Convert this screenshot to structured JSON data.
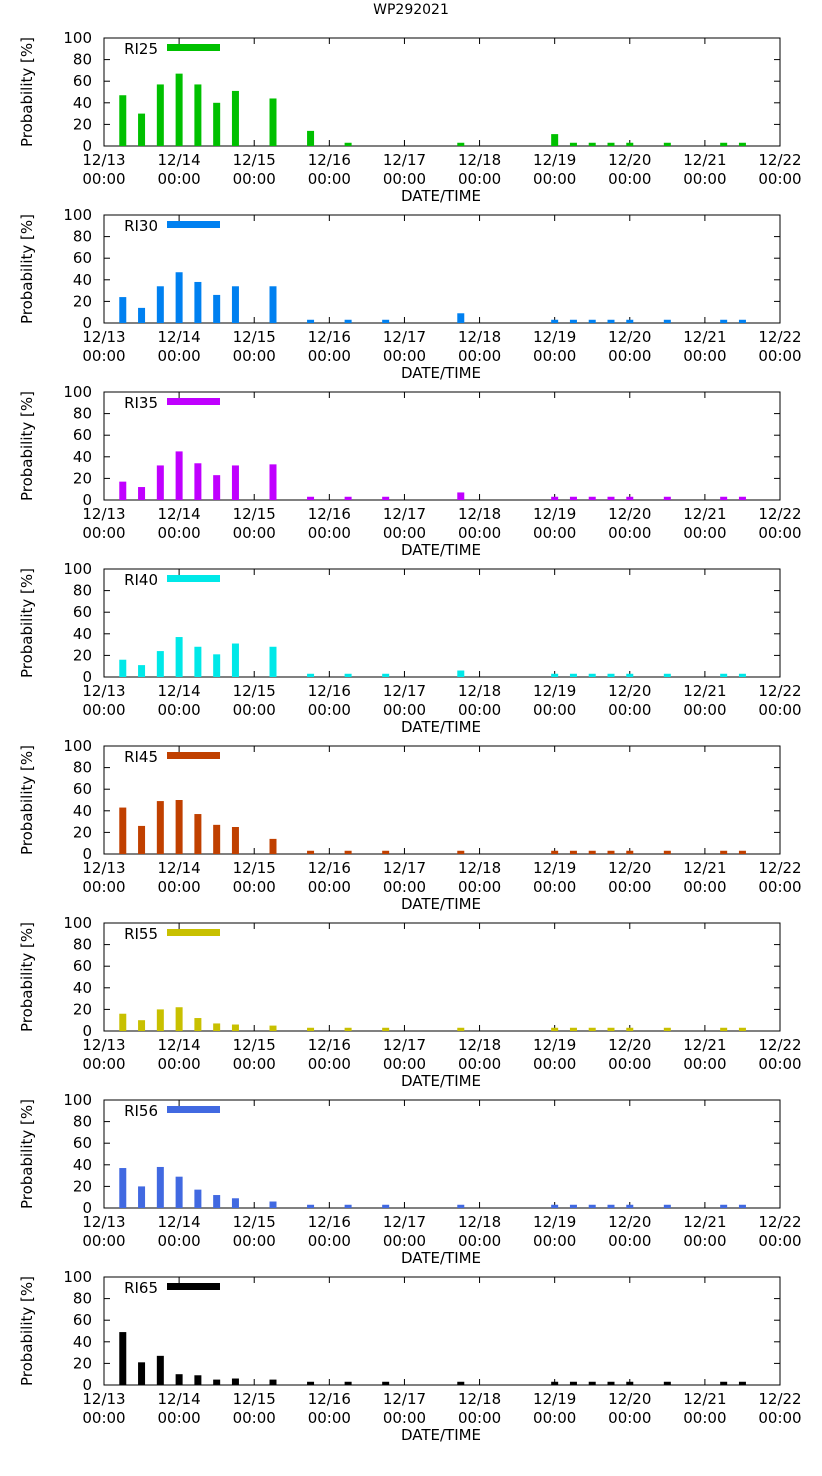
{
  "title": "WP292021",
  "chart_data": [
    {
      "type": "bar",
      "series_name": "RI25",
      "color": "#00c000",
      "ylabel": "Probability [%]",
      "xlabel": "DATE/TIME",
      "ylim": [
        0,
        100
      ],
      "yticks": [
        "0",
        "20",
        "40",
        "60",
        "80",
        "100"
      ],
      "x_tick_dates": [
        "12/13",
        "12/14",
        "12/15",
        "12/16",
        "12/17",
        "12/18",
        "12/19",
        "12/20",
        "12/21",
        "12/22"
      ],
      "x_tick_times": [
        "00:00",
        "00:00",
        "00:00",
        "00:00",
        "00:00",
        "00:00",
        "00:00",
        "00:00",
        "00:00",
        "00:00"
      ],
      "x_hours": [
        6,
        12,
        18,
        24,
        30,
        36,
        42,
        54,
        66,
        78,
        114,
        144,
        150,
        156,
        162,
        168,
        180,
        198,
        204
      ],
      "values": [
        47,
        30,
        57,
        67,
        57,
        40,
        51,
        44,
        14,
        3,
        3,
        11,
        3,
        3,
        3,
        3,
        3,
        3,
        3
      ]
    },
    {
      "type": "bar",
      "series_name": "RI30",
      "color": "#0080f0",
      "ylabel": "Probability [%]",
      "xlabel": "DATE/TIME",
      "ylim": [
        0,
        100
      ],
      "yticks": [
        "0",
        "20",
        "40",
        "60",
        "80",
        "100"
      ],
      "x_tick_dates": [
        "12/13",
        "12/14",
        "12/15",
        "12/16",
        "12/17",
        "12/18",
        "12/19",
        "12/20",
        "12/21",
        "12/22"
      ],
      "x_tick_times": [
        "00:00",
        "00:00",
        "00:00",
        "00:00",
        "00:00",
        "00:00",
        "00:00",
        "00:00",
        "00:00",
        "00:00"
      ],
      "x_hours": [
        6,
        12,
        18,
        24,
        30,
        36,
        42,
        54,
        66,
        78,
        90,
        114,
        144,
        150,
        156,
        162,
        168,
        180,
        198,
        204
      ],
      "values": [
        24,
        14,
        34,
        47,
        38,
        26,
        34,
        34,
        3,
        3,
        3,
        9,
        3,
        3,
        3,
        3,
        3,
        3,
        3,
        3
      ]
    },
    {
      "type": "bar",
      "series_name": "RI35",
      "color": "#c000ff",
      "ylabel": "Probability [%]",
      "xlabel": "DATE/TIME",
      "ylim": [
        0,
        100
      ],
      "yticks": [
        "0",
        "20",
        "40",
        "60",
        "80",
        "100"
      ],
      "x_tick_dates": [
        "12/13",
        "12/14",
        "12/15",
        "12/16",
        "12/17",
        "12/18",
        "12/19",
        "12/20",
        "12/21",
        "12/22"
      ],
      "x_tick_times": [
        "00:00",
        "00:00",
        "00:00",
        "00:00",
        "00:00",
        "00:00",
        "00:00",
        "00:00",
        "00:00",
        "00:00"
      ],
      "x_hours": [
        6,
        12,
        18,
        24,
        30,
        36,
        42,
        54,
        66,
        78,
        90,
        114,
        144,
        150,
        156,
        162,
        168,
        180,
        198,
        204
      ],
      "values": [
        17,
        12,
        32,
        45,
        34,
        23,
        32,
        33,
        3,
        3,
        3,
        7,
        3,
        3,
        3,
        3,
        3,
        3,
        3,
        3
      ]
    },
    {
      "type": "bar",
      "series_name": "RI40",
      "color": "#00e8e8",
      "ylabel": "Probability [%]",
      "xlabel": "DATE/TIME",
      "ylim": [
        0,
        100
      ],
      "yticks": [
        "0",
        "20",
        "40",
        "60",
        "80",
        "100"
      ],
      "x_tick_dates": [
        "12/13",
        "12/14",
        "12/15",
        "12/16",
        "12/17",
        "12/18",
        "12/19",
        "12/20",
        "12/21",
        "12/22"
      ],
      "x_tick_times": [
        "00:00",
        "00:00",
        "00:00",
        "00:00",
        "00:00",
        "00:00",
        "00:00",
        "00:00",
        "00:00",
        "00:00"
      ],
      "x_hours": [
        6,
        12,
        18,
        24,
        30,
        36,
        42,
        54,
        66,
        78,
        90,
        114,
        144,
        150,
        156,
        162,
        168,
        180,
        198,
        204
      ],
      "values": [
        16,
        11,
        24,
        37,
        28,
        21,
        31,
        28,
        3,
        3,
        3,
        6,
        3,
        3,
        3,
        3,
        3,
        3,
        3,
        3
      ]
    },
    {
      "type": "bar",
      "series_name": "RI45",
      "color": "#c04000",
      "ylabel": "Probability [%]",
      "xlabel": "DATE/TIME",
      "ylim": [
        0,
        100
      ],
      "yticks": [
        "0",
        "20",
        "40",
        "60",
        "80",
        "100"
      ],
      "x_tick_dates": [
        "12/13",
        "12/14",
        "12/15",
        "12/16",
        "12/17",
        "12/18",
        "12/19",
        "12/20",
        "12/21",
        "12/22"
      ],
      "x_tick_times": [
        "00:00",
        "00:00",
        "00:00",
        "00:00",
        "00:00",
        "00:00",
        "00:00",
        "00:00",
        "00:00",
        "00:00"
      ],
      "x_hours": [
        6,
        12,
        18,
        24,
        30,
        36,
        42,
        54,
        66,
        78,
        90,
        114,
        144,
        150,
        156,
        162,
        168,
        180,
        198,
        204
      ],
      "values": [
        43,
        26,
        49,
        50,
        37,
        27,
        25,
        14,
        3,
        3,
        3,
        3,
        3,
        3,
        3,
        3,
        3,
        3,
        3,
        3
      ]
    },
    {
      "type": "bar",
      "series_name": "RI55",
      "color": "#c8c000",
      "ylabel": "Probability [%]",
      "xlabel": "DATE/TIME",
      "ylim": [
        0,
        100
      ],
      "yticks": [
        "0",
        "20",
        "40",
        "60",
        "80",
        "100"
      ],
      "x_tick_dates": [
        "12/13",
        "12/14",
        "12/15",
        "12/16",
        "12/17",
        "12/18",
        "12/19",
        "12/20",
        "12/21",
        "12/22"
      ],
      "x_tick_times": [
        "00:00",
        "00:00",
        "00:00",
        "00:00",
        "00:00",
        "00:00",
        "00:00",
        "00:00",
        "00:00",
        "00:00"
      ],
      "x_hours": [
        6,
        12,
        18,
        24,
        30,
        36,
        42,
        54,
        66,
        78,
        90,
        114,
        144,
        150,
        156,
        162,
        168,
        180,
        198,
        204
      ],
      "values": [
        16,
        10,
        20,
        22,
        12,
        7,
        6,
        5,
        3,
        3,
        3,
        3,
        3,
        3,
        3,
        3,
        3,
        3,
        3,
        3
      ]
    },
    {
      "type": "bar",
      "series_name": "RI56",
      "color": "#4169e1",
      "ylabel": "Probability [%]",
      "xlabel": "DATE/TIME",
      "ylim": [
        0,
        100
      ],
      "yticks": [
        "0",
        "20",
        "40",
        "60",
        "80",
        "100"
      ],
      "x_tick_dates": [
        "12/13",
        "12/14",
        "12/15",
        "12/16",
        "12/17",
        "12/18",
        "12/19",
        "12/20",
        "12/21",
        "12/22"
      ],
      "x_tick_times": [
        "00:00",
        "00:00",
        "00:00",
        "00:00",
        "00:00",
        "00:00",
        "00:00",
        "00:00",
        "00:00",
        "00:00"
      ],
      "x_hours": [
        6,
        12,
        18,
        24,
        30,
        36,
        42,
        54,
        66,
        78,
        90,
        114,
        144,
        150,
        156,
        162,
        168,
        180,
        198,
        204
      ],
      "values": [
        37,
        20,
        38,
        29,
        17,
        12,
        9,
        6,
        3,
        3,
        3,
        3,
        3,
        3,
        3,
        3,
        3,
        3,
        3,
        3
      ]
    },
    {
      "type": "bar",
      "series_name": "RI65",
      "color": "#000000",
      "ylabel": "Probability [%]",
      "xlabel": "DATE/TIME",
      "ylim": [
        0,
        100
      ],
      "yticks": [
        "0",
        "20",
        "40",
        "60",
        "80",
        "100"
      ],
      "x_tick_dates": [
        "12/13",
        "12/14",
        "12/15",
        "12/16",
        "12/17",
        "12/18",
        "12/19",
        "12/20",
        "12/21",
        "12/22"
      ],
      "x_tick_times": [
        "00:00",
        "00:00",
        "00:00",
        "00:00",
        "00:00",
        "00:00",
        "00:00",
        "00:00",
        "00:00",
        "00:00"
      ],
      "x_hours": [
        6,
        12,
        18,
        24,
        30,
        36,
        42,
        54,
        66,
        78,
        90,
        114,
        144,
        150,
        156,
        162,
        168,
        180,
        198,
        204
      ],
      "values": [
        49,
        21,
        27,
        10,
        9,
        5,
        6,
        5,
        3,
        3,
        3,
        3,
        3,
        3,
        3,
        3,
        3,
        3,
        3,
        3
      ]
    }
  ]
}
